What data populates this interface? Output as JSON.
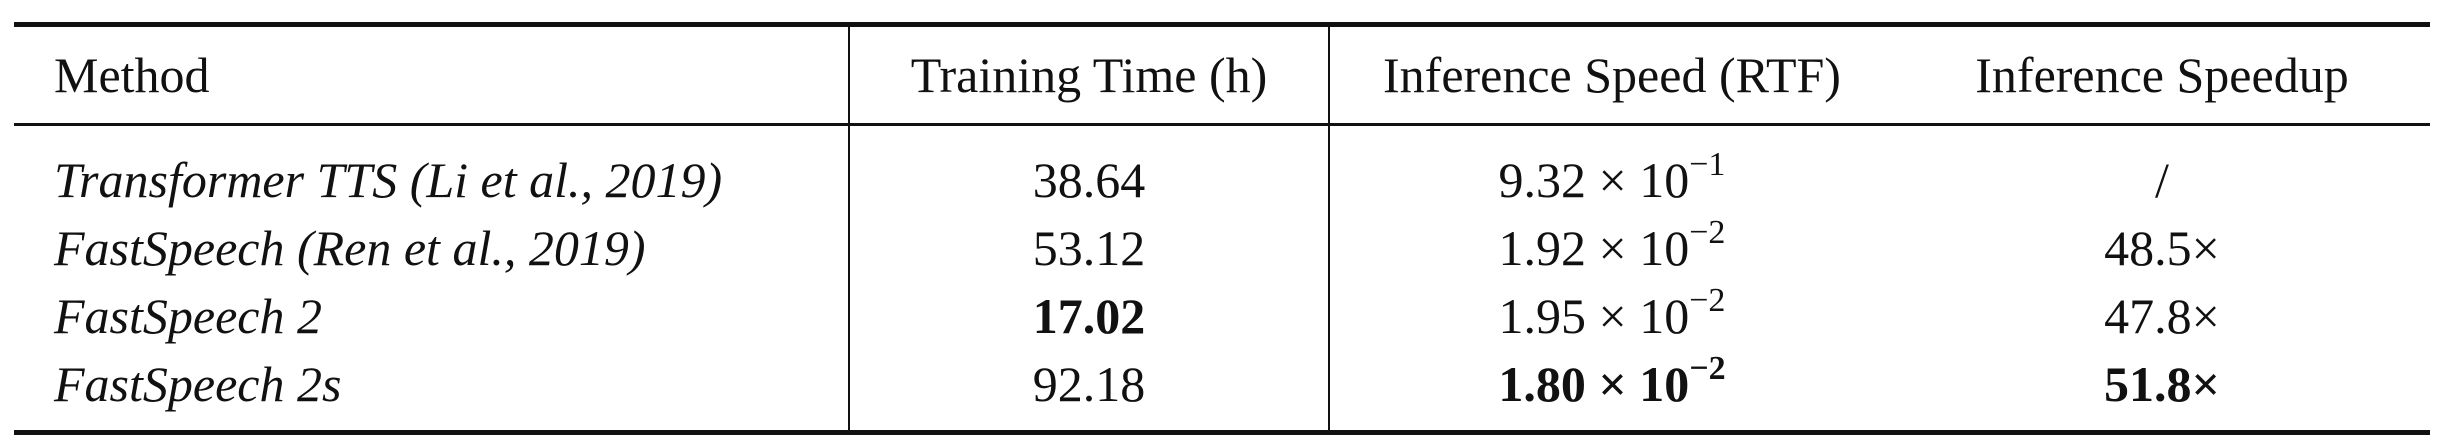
{
  "table": {
    "headers": {
      "method": "Method",
      "training_time": "Training Time (h)",
      "inference_speed": "Inference Speed (RTF)",
      "inference_speedup": "Inference Speedup"
    },
    "rows": [
      {
        "method": "Transformer TTS (Li et al., 2019)",
        "training_time": "38.64",
        "rtf_mantissa": "9.32 × 10",
        "rtf_exponent": "−1",
        "speedup": "/"
      },
      {
        "method": "FastSpeech (Ren et al., 2019)",
        "training_time": "53.12",
        "rtf_mantissa": "1.92 × 10",
        "rtf_exponent": "−2",
        "speedup": "48.5×"
      },
      {
        "method": "FastSpeech 2",
        "training_time": "17.02",
        "rtf_mantissa": "1.95 × 10",
        "rtf_exponent": "−2",
        "speedup": "47.8×"
      },
      {
        "method": "FastSpeech 2s",
        "training_time": "92.18",
        "rtf_mantissa": "1.80 × 10",
        "rtf_exponent": "−2",
        "speedup": "51.8×"
      }
    ]
  }
}
